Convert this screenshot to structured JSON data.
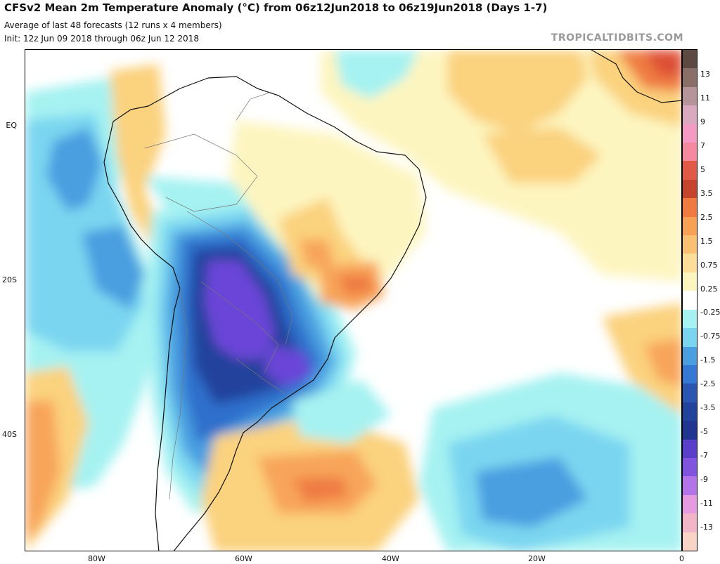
{
  "header": {
    "title": "CFSv2 Mean 2m Temperature Anomaly (°C) from 06z12Jun2018 to 06z19Jun2018 (Days 1-7)",
    "subtitle1": "Average of last 48 forecasts (12 runs x 4 members)",
    "subtitle2": "Init: 12z Jun 09 2018 through 06z Jun 12 2018",
    "credit": "TROPICALTIDBITS.COM"
  },
  "map": {
    "lat_labels": [
      "EQ",
      "20S",
      "40S"
    ],
    "lon_labels": [
      "80W",
      "60W",
      "40W",
      "20W",
      "0"
    ],
    "colors": {
      "ocean_neutral": "#ffffff",
      "weak_warm": "#fdf5c0",
      "mod_warm": "#fbd27e",
      "warm": "#f8a45a",
      "strong_warm": "#ef7b43",
      "very_warm": "#dd5035",
      "weak_cool": "#a6f2f2",
      "mod_cool": "#7ad6f0",
      "cool": "#4a9fe0",
      "strong_cool": "#2f6fcc",
      "very_cool": "#21439c",
      "extreme_cool": "#6b45d8",
      "coast": "#111111",
      "border": "#777777"
    }
  },
  "colorbar": {
    "labels": [
      "13",
      "11",
      "9",
      "7",
      "5",
      "3.5",
      "2.5",
      "1.5",
      "0.75",
      "0.25",
      "-0.25",
      "-0.75",
      "-1.5",
      "-2.5",
      "-3.5",
      "-5",
      "-7",
      "-9",
      "-11",
      "-13"
    ],
    "colors": [
      "#5c4a42",
      "#8a6e68",
      "#b5949a",
      "#d9a9c0",
      "#f49ac4",
      "#f5899f",
      "#e05a46",
      "#c4452c",
      "#ef7b43",
      "#f7a157",
      "#fbc173",
      "#fdde98",
      "#fdf5c0",
      "#ffffff",
      "#a6f2f2",
      "#7ad6f0",
      "#4a9fe0",
      "#3478d4",
      "#2a55b0",
      "#21439c",
      "#1f3590",
      "#5a3fc8",
      "#8154e0",
      "#b274e8",
      "#e69ae0",
      "#f2b5c8",
      "#f9d3c5"
    ]
  }
}
